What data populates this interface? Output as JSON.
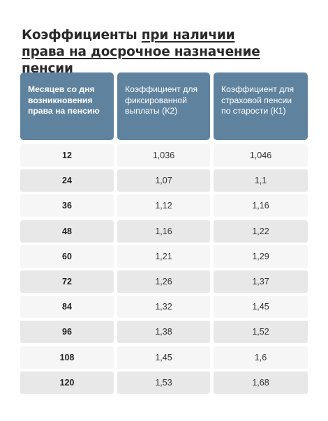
{
  "title": {
    "part1": "Коэффициенты ",
    "part2": "при наличии",
    "line2": "права на досрочное назначение пенсии"
  },
  "headers": [
    "Месяцев со дня возникновения права на пенсию",
    "Коэффициент для фиксированной выплаты (К2)",
    "Коэффициент для страховой пенсии по старости (К1)"
  ],
  "rows": [
    {
      "months": "12",
      "k2": "1,036",
      "k1": "1,046"
    },
    {
      "months": "24",
      "k2": "1,07",
      "k1": "1,1"
    },
    {
      "months": "36",
      "k2": "1,12",
      "k1": "1,16"
    },
    {
      "months": "48",
      "k2": "1,16",
      "k1": "1,22"
    },
    {
      "months": "60",
      "k2": "1,21",
      "k1": "1,29"
    },
    {
      "months": "72",
      "k2": "1,26",
      "k1": "1,37"
    },
    {
      "months": "84",
      "k2": "1,32",
      "k1": "1,45"
    },
    {
      "months": "96",
      "k2": "1,38",
      "k1": "1,52"
    },
    {
      "months": "108",
      "k2": "1,45",
      "k1": "1,6"
    },
    {
      "months": "120",
      "k2": "1,53",
      "k1": "1,68"
    }
  ],
  "colors": {
    "header_bg": "#5f839f",
    "row_light": "#f6f6f6",
    "row_dark": "#e8e8e8"
  }
}
